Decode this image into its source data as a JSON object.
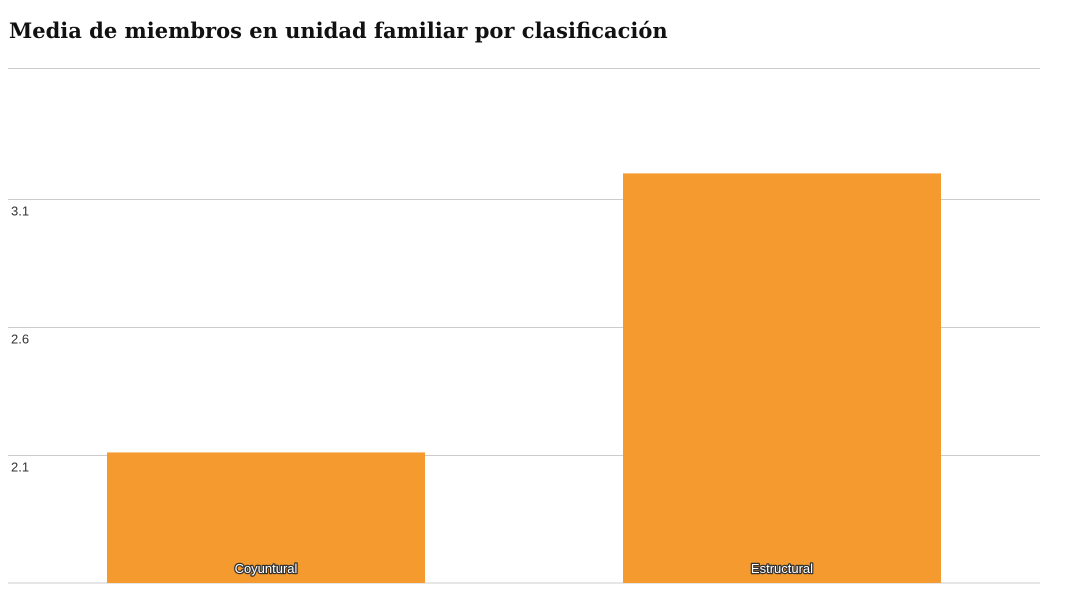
{
  "chart_data": {
    "type": "bar",
    "title": "Media de miembros en unidad familiar por clasificación",
    "categories": [
      "Coyuntural",
      "Estructural"
    ],
    "values": [
      2.11,
      3.2
    ],
    "ylim": [
      1.6,
      3.6
    ],
    "yticks": [
      "2.1",
      "2.6",
      "3.1"
    ],
    "ytick_values": [
      2.1,
      2.6,
      3.1
    ],
    "grid": true,
    "bar_color": "#f59a2e",
    "grid_color": "#cccccc"
  }
}
